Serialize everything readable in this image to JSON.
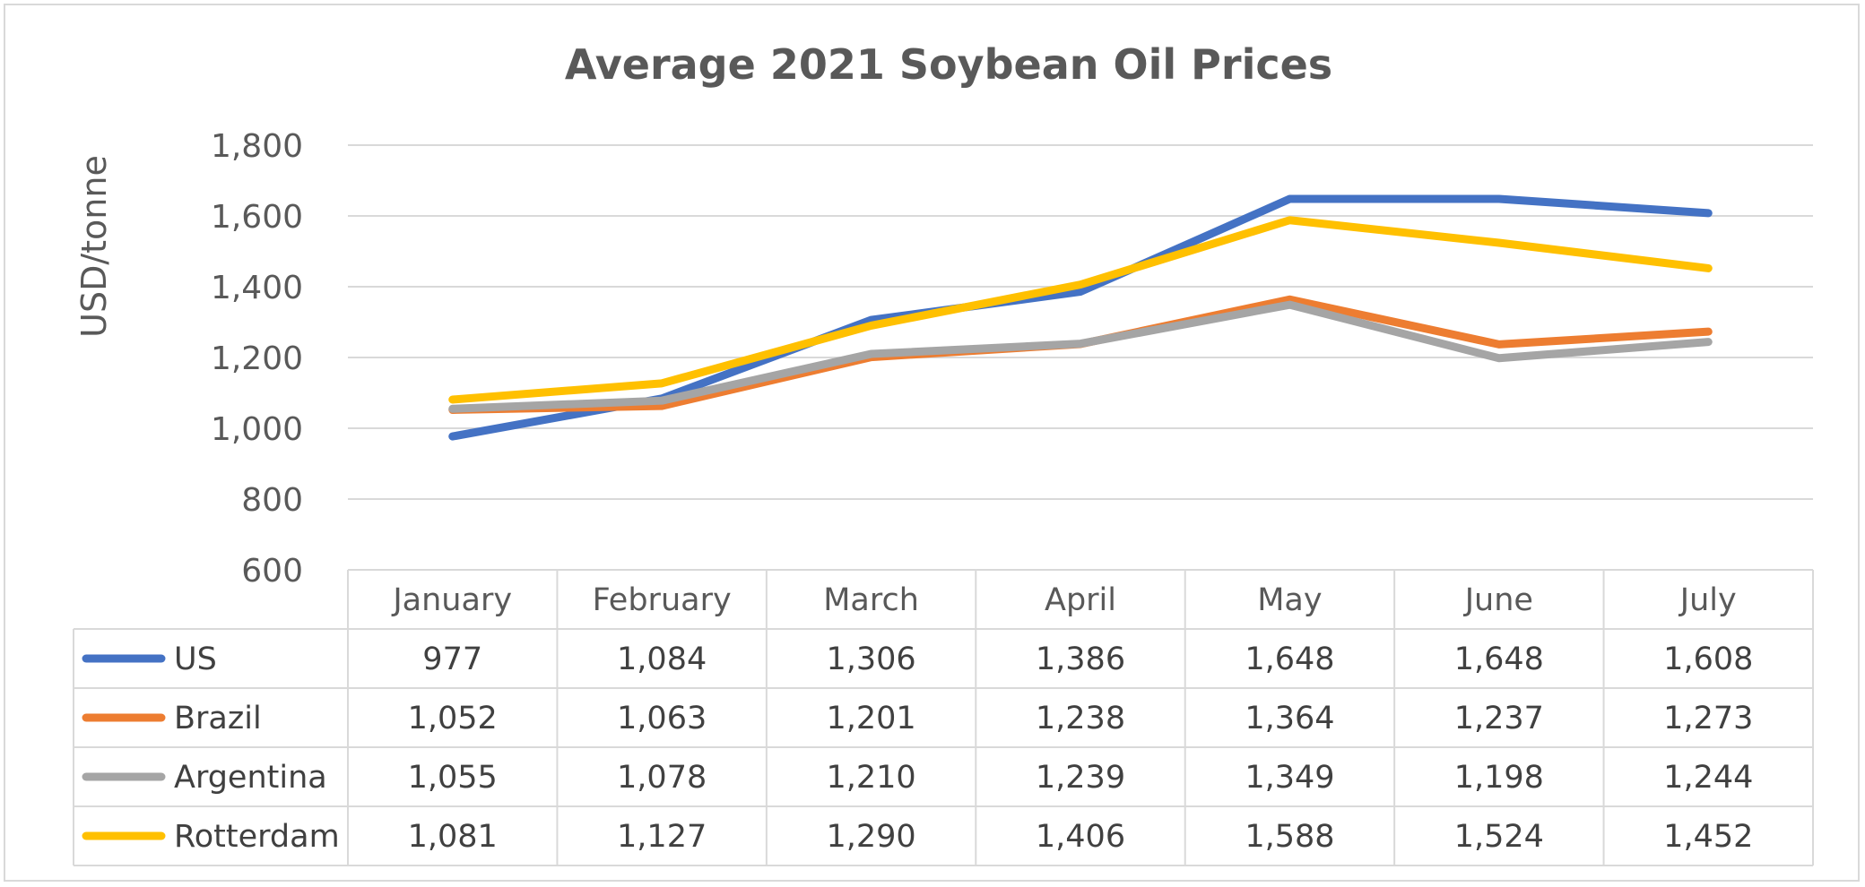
{
  "chart_data": {
    "type": "line",
    "title": "Average 2021 Soybean Oil Prices",
    "xlabel": "",
    "ylabel": "USD/tonne",
    "categories": [
      "January",
      "February",
      "March",
      "April",
      "May",
      "June",
      "July"
    ],
    "ylim": [
      600,
      1800
    ],
    "yticks": [
      "1,800",
      "1,600",
      "1,400",
      "1,200",
      "1,000",
      "800",
      "600"
    ],
    "ytick_values": [
      1800,
      1600,
      1400,
      1200,
      1000,
      800,
      600
    ],
    "grid": true,
    "legend": "data-table-left",
    "series": [
      {
        "name": "US",
        "color": "#4472C4",
        "values": [
          977,
          1084,
          1306,
          1386,
          1648,
          1648,
          1608
        ],
        "labels": [
          "977",
          "1,084",
          "1,306",
          "1,386",
          "1,648",
          "1,648",
          "1,608"
        ]
      },
      {
        "name": "Brazil",
        "color": "#ED7D31",
        "values": [
          1052,
          1063,
          1201,
          1238,
          1364,
          1237,
          1273
        ],
        "labels": [
          "1,052",
          "1,063",
          "1,201",
          "1,238",
          "1,364",
          "1,237",
          "1,273"
        ]
      },
      {
        "name": "Argentina",
        "color": "#A5A5A5",
        "values": [
          1055,
          1078,
          1210,
          1239,
          1349,
          1198,
          1244
        ],
        "labels": [
          "1,055",
          "1,078",
          "1,210",
          "1,239",
          "1,349",
          "1,198",
          "1,244"
        ]
      },
      {
        "name": "Rotterdam",
        "color": "#FFC000",
        "values": [
          1081,
          1127,
          1290,
          1406,
          1588,
          1524,
          1452
        ],
        "labels": [
          "1,081",
          "1,127",
          "1,290",
          "1,406",
          "1,588",
          "1,524",
          "1,452"
        ]
      }
    ]
  }
}
